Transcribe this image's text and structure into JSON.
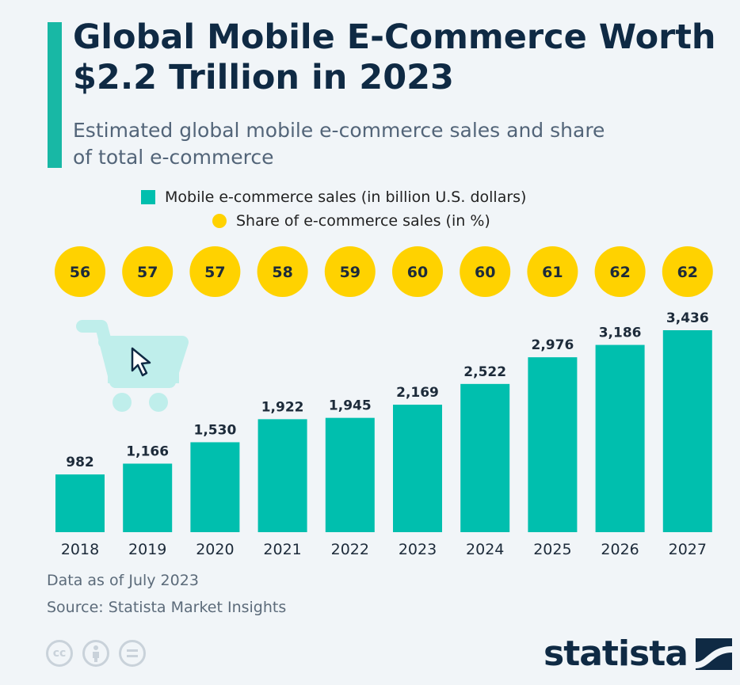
{
  "header": {
    "title": "Global Mobile E-Commerce Worth $2.2 Trillion in 2023",
    "subtitle": "Estimated global mobile e-commerce sales and share of total e-commerce"
  },
  "legend": {
    "bars": "Mobile e-commerce sales (in billion U.S. dollars)",
    "share": "Share of e-commerce sales (in %)"
  },
  "chart_data": {
    "type": "bar",
    "title": "Global Mobile E-Commerce Worth $2.2 Trillion in 2023",
    "subtitle": "Estimated global mobile e-commerce sales and share of total e-commerce",
    "categories": [
      "2018",
      "2019",
      "2020",
      "2021",
      "2022",
      "2023",
      "2024",
      "2025",
      "2026",
      "2027"
    ],
    "series": [
      {
        "name": "Mobile e-commerce sales (in billion U.S. dollars)",
        "values": [
          982,
          1166,
          1530,
          1922,
          1945,
          2169,
          2522,
          2976,
          3186,
          3436
        ],
        "labels": [
          "982",
          "1,166",
          "1,530",
          "1,922",
          "1,945",
          "2,169",
          "2,522",
          "2,976",
          "3,186",
          "3,436"
        ]
      },
      {
        "name": "Share of e-commerce sales (in %)",
        "values": [
          56,
          57,
          57,
          58,
          59,
          60,
          60,
          61,
          62,
          62
        ]
      }
    ],
    "ylim": [
      0,
      3436
    ],
    "grid": false,
    "legend_position": "top",
    "colors": {
      "bars": "#00bfae",
      "share": "#ffd200",
      "cart": "#bfeeeb"
    }
  },
  "footer": {
    "note": "Data as of July 2023",
    "source": "Source: Statista Market Insights",
    "brand": "statista",
    "license_icons": [
      "cc-icon",
      "attribution-icon",
      "no-derivatives-icon"
    ]
  }
}
